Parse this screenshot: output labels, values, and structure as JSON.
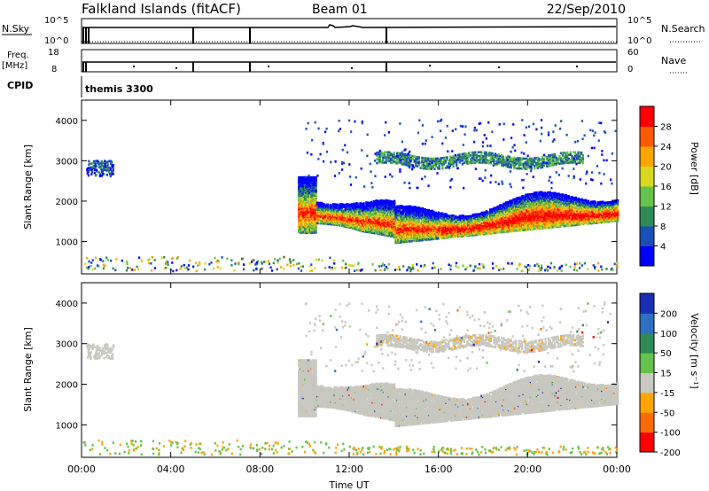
{
  "header": {
    "station": "Falkland Islands (fitACF)",
    "beam": "Beam 01",
    "date": "22/Sep/2010"
  },
  "strip_labels": {
    "nsky": "N.Sky",
    "nsky_top": "10^5",
    "nsky_bot": "10^0",
    "nsearch": "N.Search",
    "nsearch_top": "10^5",
    "nsearch_bot": "10^0",
    "freq": "Freq.",
    "freq_unit": "[MHz]",
    "freq_top": "18",
    "freq_bot": "8",
    "nave": "Nave",
    "nave_top": "60",
    "nave_bot": "0",
    "cpid": "CPID",
    "cpid_text": "themis 3300"
  },
  "chart_data": [
    {
      "type": "heatmap",
      "title": "",
      "ylabel": "Slant Range [km]",
      "xlabel": "",
      "ylim": [
        200,
        4500
      ],
      "yticks": [
        "1000",
        "2000",
        "3000",
        "4000"
      ],
      "xlim": [
        "00:00",
        "24:00"
      ],
      "colorbar": {
        "label": "Power [dB]",
        "ticks": [
          "4",
          "8",
          "12",
          "16",
          "20",
          "24",
          "28"
        ],
        "colors": [
          "#0000ff",
          "#1a4fb8",
          "#2e8b57",
          "#66c24a",
          "#d8d820",
          "#ffa500",
          "#ff5a00",
          "#ff0000"
        ]
      }
    },
    {
      "type": "heatmap",
      "title": "",
      "ylabel": "Slant Range [km]",
      "xlabel": "Time UT",
      "ylim": [
        200,
        4500
      ],
      "yticks": [
        "1000",
        "2000",
        "3000",
        "4000"
      ],
      "xlim": [
        "00:00",
        "24:00"
      ],
      "xticks": [
        "00:00",
        "04:00",
        "08:00",
        "12:00",
        "16:00",
        "20:00",
        "00:00"
      ],
      "colorbar": {
        "label": "Velocity [m s⁻¹]",
        "ticks": [
          "200",
          "100",
          "50",
          "15",
          "-15",
          "-50",
          "-100",
          "-200"
        ],
        "colors": [
          "#1a2fb5",
          "#2e6fbf",
          "#2e8b57",
          "#66c24a",
          "#c8c8c0",
          "#ffa500",
          "#ff6a00",
          "#ff0000"
        ]
      }
    }
  ]
}
